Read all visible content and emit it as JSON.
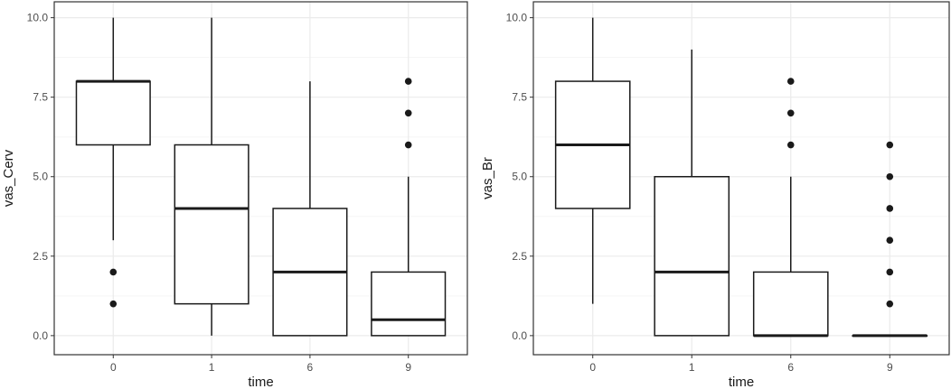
{
  "chart_data": [
    {
      "type": "box",
      "xlabel": "time",
      "ylabel": "vas_Cerv",
      "categories": [
        "0",
        "1",
        "6",
        "9"
      ],
      "ylim": [
        -0.6,
        10.5
      ],
      "yticks": [
        0,
        2.5,
        5,
        7.5,
        10
      ],
      "ytick_labels": [
        "0.0",
        "2.5",
        "5.0",
        "7.5",
        "10.0"
      ],
      "grid": true,
      "boxes": [
        {
          "category": "0",
          "whisker_low": 3,
          "q1": 6,
          "median": 8,
          "q3": 8,
          "whisker_high": 10,
          "outliers": [
            2,
            1
          ]
        },
        {
          "category": "1",
          "whisker_low": 0,
          "q1": 1,
          "median": 4,
          "q3": 6,
          "whisker_high": 10,
          "outliers": []
        },
        {
          "category": "6",
          "whisker_low": 0,
          "q1": 0,
          "median": 2,
          "q3": 4,
          "whisker_high": 8,
          "outliers": []
        },
        {
          "category": "9",
          "whisker_low": 0,
          "q1": 0,
          "median": 0.5,
          "q3": 2,
          "whisker_high": 5,
          "outliers": [
            6,
            7,
            8
          ]
        }
      ]
    },
    {
      "type": "box",
      "xlabel": "time",
      "ylabel": "vas_Br",
      "categories": [
        "0",
        "1",
        "6",
        "9"
      ],
      "ylim": [
        -0.6,
        10.5
      ],
      "yticks": [
        0,
        2.5,
        5,
        7.5,
        10
      ],
      "ytick_labels": [
        "0.0",
        "2.5",
        "5.0",
        "7.5",
        "10.0"
      ],
      "grid": true,
      "boxes": [
        {
          "category": "0",
          "whisker_low": 1,
          "q1": 4,
          "median": 6,
          "q3": 8,
          "whisker_high": 10,
          "outliers": []
        },
        {
          "category": "1",
          "whisker_low": 0,
          "q1": 0,
          "median": 2,
          "q3": 5,
          "whisker_high": 9,
          "outliers": []
        },
        {
          "category": "6",
          "whisker_low": 0,
          "q1": 0,
          "median": 0,
          "q3": 2,
          "whisker_high": 5,
          "outliers": [
            6,
            7,
            8
          ]
        },
        {
          "category": "9",
          "whisker_low": 0,
          "q1": 0,
          "median": 0,
          "q3": 0,
          "whisker_high": 0,
          "outliers": [
            1,
            2,
            3,
            4,
            5,
            6
          ]
        }
      ]
    }
  ],
  "colors": {
    "grid_major": "#ebebeb",
    "grid_minor": "#f5f5f5",
    "panel_border": "#333333",
    "box_line": "#1a1a1a",
    "tick_text": "#4d4d4d",
    "axis_title": "#1a1a1a"
  }
}
